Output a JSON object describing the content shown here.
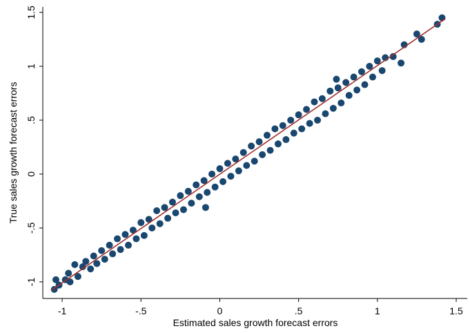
{
  "chart_data": {
    "type": "scatter",
    "x_label": "Estimated sales growth forecast errors",
    "y_label": "True sales growth forecast errors",
    "xlim": [
      -1.123,
      1.57
    ],
    "ylim": [
      -1.154,
      1.551
    ],
    "xticks": [
      -1,
      {
        "value": -0.5,
        "label": "-.5"
      },
      0,
      {
        "value": 0.5,
        "label": ".5"
      },
      1,
      1.5
    ],
    "yticks": [
      -1,
      {
        "value": -0.5,
        "label": "-.5"
      },
      0,
      {
        "value": 0.5,
        "label": ".5"
      },
      1,
      1.5
    ],
    "series": [
      {
        "color": "#1a476f",
        "x": [
          -1.05,
          -1.04,
          -1.02,
          -0.98,
          -0.96,
          -0.95,
          -0.92,
          -0.9,
          -0.87,
          -0.85,
          -0.82,
          -0.8,
          -0.78,
          -0.75,
          -0.73,
          -0.7,
          -0.68,
          -0.65,
          -0.63,
          -0.6,
          -0.58,
          -0.55,
          -0.53,
          -0.5,
          -0.48,
          -0.45,
          -0.43,
          -0.4,
          -0.38,
          -0.35,
          -0.33,
          -0.3,
          -0.28,
          -0.25,
          -0.23,
          -0.2,
          -0.18,
          -0.15,
          -0.13,
          -0.1,
          -0.08,
          -0.05,
          -0.03,
          0,
          0.02,
          0.05,
          0.07,
          0.1,
          0.12,
          0.15,
          0.17,
          0.2,
          0.22,
          0.25,
          0.27,
          0.3,
          0.32,
          0.35,
          0.37,
          0.4,
          0.42,
          0.45,
          0.47,
          0.5,
          0.52,
          0.55,
          0.57,
          0.6,
          0.62,
          0.65,
          0.67,
          0.7,
          0.72,
          0.74,
          0.75,
          0.77,
          0.8,
          0.82,
          0.85,
          0.87,
          0.9,
          0.92,
          0.95,
          0.97,
          1.0,
          1.03,
          1.05,
          1.1,
          1.15,
          1.17,
          1.25,
          1.28,
          1.38,
          1.41,
          -0.09
        ],
        "values": [
          -1.07,
          -0.98,
          -1.03,
          -0.98,
          -0.92,
          -1.0,
          -0.84,
          -0.95,
          -0.86,
          -0.81,
          -0.88,
          -0.76,
          -0.83,
          -0.71,
          -0.79,
          -0.66,
          -0.74,
          -0.6,
          -0.7,
          -0.56,
          -0.66,
          -0.52,
          -0.6,
          -0.45,
          -0.57,
          -0.42,
          -0.5,
          -0.34,
          -0.46,
          -0.31,
          -0.41,
          -0.26,
          -0.36,
          -0.2,
          -0.33,
          -0.16,
          -0.27,
          -0.1,
          -0.21,
          -0.06,
          -0.17,
          0.0,
          -0.12,
          0.05,
          -0.07,
          0.1,
          -0.02,
          0.14,
          0.03,
          0.2,
          0.08,
          0.26,
          0.12,
          0.3,
          0.18,
          0.36,
          0.22,
          0.42,
          0.28,
          0.45,
          0.32,
          0.5,
          0.38,
          0.55,
          0.42,
          0.6,
          0.47,
          0.67,
          0.5,
          0.7,
          0.56,
          0.77,
          0.61,
          0.88,
          0.8,
          0.66,
          0.85,
          0.73,
          0.9,
          0.78,
          0.95,
          0.83,
          1.0,
          0.9,
          1.05,
          0.96,
          1.08,
          1.09,
          1.03,
          1.2,
          1.3,
          1.25,
          1.39,
          1.45,
          -0.31
        ]
      }
    ],
    "fit_line": {
      "color": "#a0302d",
      "x": [
        -1.07,
        1.43
      ],
      "values": [
        -1.08,
        1.44
      ]
    }
  }
}
